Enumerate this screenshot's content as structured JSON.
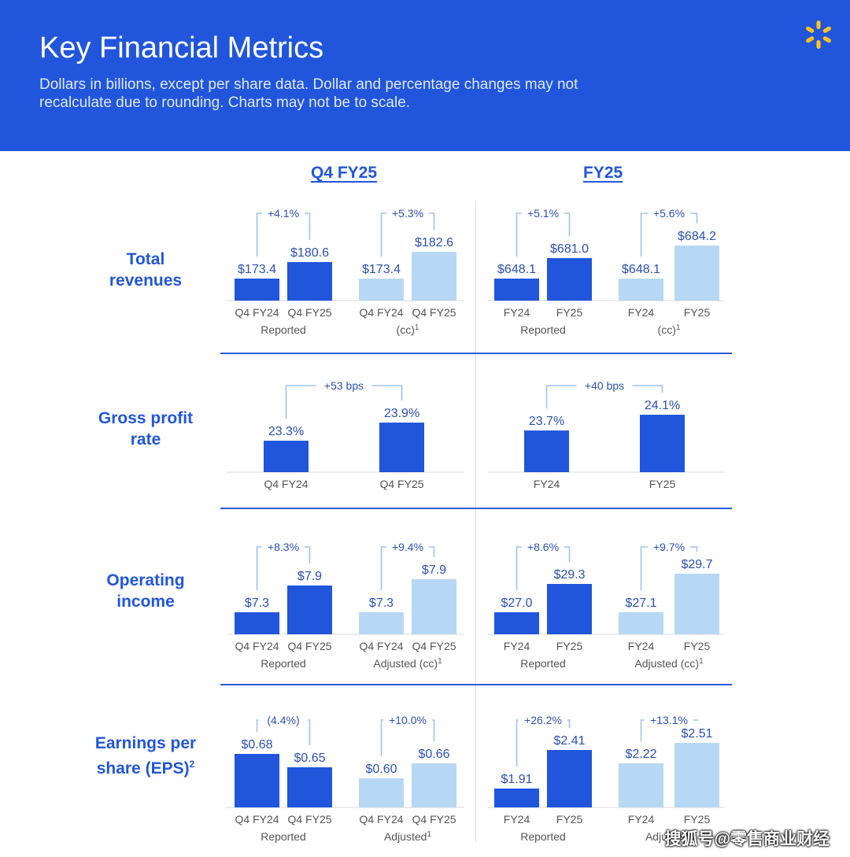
{
  "header": {
    "title": "Key Financial Metrics",
    "subtitle_line1": "Dollars in billions, except per share data. Dollar and percentage changes may not",
    "subtitle_line2": "recalculate due to rounding. Charts may not be to scale."
  },
  "columns": [
    "Q4 FY25",
    "FY25"
  ],
  "rows": [
    {
      "label_line1": "Total",
      "label_line2": "revenues",
      "label_sup": ""
    },
    {
      "label_line1": "Gross profit",
      "label_line2": "rate",
      "label_sup": ""
    },
    {
      "label_line1": "Operating",
      "label_line2": "income",
      "label_sup": ""
    },
    {
      "label_line1": "Earnings per",
      "label_line2": "share (EPS)",
      "label_sup": "2"
    }
  ],
  "colors": {
    "primary": "#2156dc",
    "light": "#b6d8f4",
    "header_bg": "#2156dc",
    "logo": "#ffc220"
  },
  "logo_icon": "walmart-spark-icon",
  "watermark": "搜狐号@零售商业财经",
  "chart_data": [
    {
      "type": "bar",
      "metric": "Total revenues",
      "period": "Q4 FY25",
      "basis": "Reported",
      "categories": [
        "Q4 FY24",
        "Q4 FY25"
      ],
      "values": [
        173.4,
        180.6
      ],
      "value_labels": [
        "$173.4",
        "$180.6"
      ],
      "change": "+4.1%",
      "sublabel": "Reported",
      "color": "#2156dc"
    },
    {
      "type": "bar",
      "metric": "Total revenues",
      "period": "Q4 FY25",
      "basis": "(cc)",
      "categories": [
        "Q4 FY24",
        "Q4 FY25"
      ],
      "values": [
        173.4,
        182.6
      ],
      "value_labels": [
        "$173.4",
        "$182.6"
      ],
      "change": "+5.3%",
      "sublabel": "(cc)",
      "sublabel_sup": "1",
      "color": "#b6d8f4"
    },
    {
      "type": "bar",
      "metric": "Total revenues",
      "period": "FY25",
      "basis": "Reported",
      "categories": [
        "FY24",
        "FY25"
      ],
      "values": [
        648.1,
        681.0
      ],
      "value_labels": [
        "$648.1",
        "$681.0"
      ],
      "change": "+5.1%",
      "sublabel": "Reported",
      "color": "#2156dc"
    },
    {
      "type": "bar",
      "metric": "Total revenues",
      "period": "FY25",
      "basis": "(cc)",
      "categories": [
        "FY24",
        "FY25"
      ],
      "values": [
        648.1,
        684.2
      ],
      "value_labels": [
        "$648.1",
        "$684.2"
      ],
      "change": "+5.6%",
      "sublabel": "(cc)",
      "sublabel_sup": "1",
      "color": "#b6d8f4"
    },
    {
      "type": "bar",
      "metric": "Gross profit rate",
      "period": "Q4 FY25",
      "categories": [
        "Q4 FY24",
        "Q4 FY25"
      ],
      "values": [
        23.3,
        23.9
      ],
      "value_labels": [
        "23.3%",
        "23.9%"
      ],
      "change": "+53 bps",
      "sublabel": "",
      "color": "#2156dc"
    },
    {
      "type": "bar",
      "metric": "Gross profit rate",
      "period": "FY25",
      "categories": [
        "FY24",
        "FY25"
      ],
      "values": [
        23.7,
        24.1
      ],
      "value_labels": [
        "23.7%",
        "24.1%"
      ],
      "change": "+40 bps",
      "sublabel": "",
      "color": "#2156dc"
    },
    {
      "type": "bar",
      "metric": "Operating income",
      "period": "Q4 FY25",
      "basis": "Reported",
      "categories": [
        "Q4 FY24",
        "Q4 FY25"
      ],
      "values": [
        7.3,
        7.9
      ],
      "value_labels": [
        "$7.3",
        "$7.9"
      ],
      "change": "+8.3%",
      "sublabel": "Reported",
      "color": "#2156dc"
    },
    {
      "type": "bar",
      "metric": "Operating income",
      "period": "Q4 FY25",
      "basis": "Adjusted (cc)",
      "categories": [
        "Q4 FY24",
        "Q4 FY25"
      ],
      "values": [
        7.3,
        7.9
      ],
      "value_labels": [
        "$7.3",
        "$7.9"
      ],
      "change": "+9.4%",
      "sublabel": "Adjusted (cc)",
      "sublabel_sup": "1",
      "color": "#b6d8f4"
    },
    {
      "type": "bar",
      "metric": "Operating income",
      "period": "FY25",
      "basis": "Reported",
      "categories": [
        "FY24",
        "FY25"
      ],
      "values": [
        27.0,
        29.3
      ],
      "value_labels": [
        "$27.0",
        "$29.3"
      ],
      "change": "+8.6%",
      "sublabel": "Reported",
      "color": "#2156dc"
    },
    {
      "type": "bar",
      "metric": "Operating income",
      "period": "FY25",
      "basis": "Adjusted (cc)",
      "categories": [
        "FY24",
        "FY25"
      ],
      "values": [
        27.1,
        29.7
      ],
      "value_labels": [
        "$27.1",
        "$29.7"
      ],
      "change": "+9.7%",
      "sublabel": "Adjusted (cc)",
      "sublabel_sup": "1",
      "color": "#b6d8f4"
    },
    {
      "type": "bar",
      "metric": "Earnings per share (EPS)",
      "period": "Q4 FY25",
      "basis": "Reported",
      "categories": [
        "Q4 FY24",
        "Q4 FY25"
      ],
      "values": [
        0.68,
        0.65
      ],
      "value_labels": [
        "$0.68",
        "$0.65"
      ],
      "change": "(4.4%)",
      "sublabel": "Reported",
      "color": "#2156dc"
    },
    {
      "type": "bar",
      "metric": "Earnings per share (EPS)",
      "period": "Q4 FY25",
      "basis": "Adjusted",
      "categories": [
        "Q4 FY24",
        "Q4 FY25"
      ],
      "values": [
        0.6,
        0.66
      ],
      "value_labels": [
        "$0.60",
        "$0.66"
      ],
      "change": "+10.0%",
      "sublabel": "Adjusted",
      "sublabel_sup": "1",
      "color": "#b6d8f4"
    },
    {
      "type": "bar",
      "metric": "Earnings per share (EPS)",
      "period": "FY25",
      "basis": "Reported",
      "categories": [
        "FY24",
        "FY25"
      ],
      "values": [
        1.91,
        2.41
      ],
      "value_labels": [
        "$1.91",
        "$2.41"
      ],
      "change": "+26.2%",
      "sublabel": "Reported",
      "color": "#2156dc"
    },
    {
      "type": "bar",
      "metric": "Earnings per share (EPS)",
      "period": "FY25",
      "basis": "Adjusted",
      "categories": [
        "FY24",
        "FY25"
      ],
      "values": [
        2.22,
        2.51
      ],
      "value_labels": [
        "$2.22",
        "$2.51"
      ],
      "change": "+13.1%",
      "sublabel": "Adjusted",
      "sublabel_sup": "1",
      "color": "#b6d8f4"
    }
  ]
}
